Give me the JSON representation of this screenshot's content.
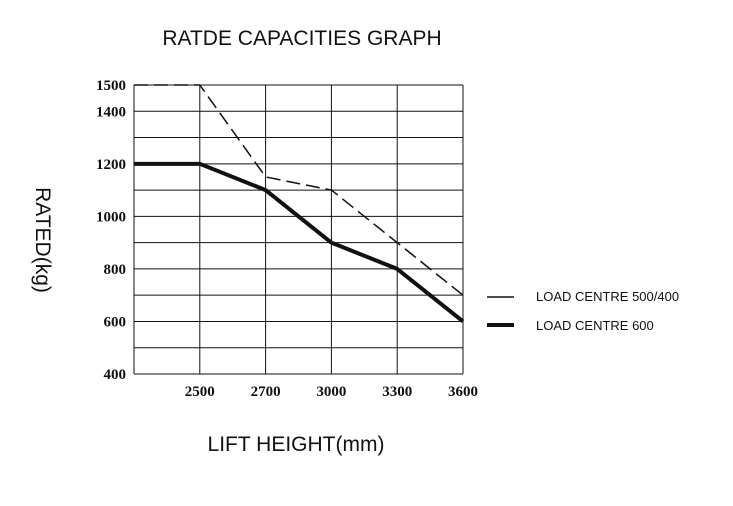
{
  "chart_data": {
    "type": "line",
    "title": "RATDE CAPACITIES GRAPH",
    "xlabel": "LIFT HEIGHT(mm)",
    "ylabel": "RATED(kg)",
    "x_tick_labels": [
      "2500",
      "2700",
      "3000",
      "3300",
      "3600"
    ],
    "y_tick_labels": [
      "400",
      "600",
      "800",
      "1000",
      "1200",
      "1400",
      "1500"
    ],
    "y_ticks": [
      400,
      600,
      800,
      1000,
      1200,
      1400,
      1500
    ],
    "ylim": [
      400,
      1500
    ],
    "x_positions_note": "categorical-like axis with 5 columns; first column is left of 2500",
    "series": [
      {
        "name": "LOAD CENTRE 500/400",
        "style": "dashed",
        "points": [
          {
            "x_index": 0,
            "y": 1500
          },
          {
            "x_index": 1,
            "y": 1500
          },
          {
            "x_index": 2,
            "y": 1150
          },
          {
            "x_index": 3,
            "y": 1100
          },
          {
            "x_index": 4,
            "y": 900
          },
          {
            "x_index": 5,
            "y": 700
          }
        ]
      },
      {
        "name": "LOAD CENTRE 600",
        "style": "solid-bold",
        "points": [
          {
            "x_index": 0,
            "y": 1200
          },
          {
            "x_index": 1,
            "y": 1200
          },
          {
            "x_index": 2,
            "y": 1100
          },
          {
            "x_index": 3,
            "y": 900
          },
          {
            "x_index": 4,
            "y": 800
          },
          {
            "x_index": 5,
            "y": 600
          }
        ]
      }
    ],
    "legend_position": "right"
  }
}
